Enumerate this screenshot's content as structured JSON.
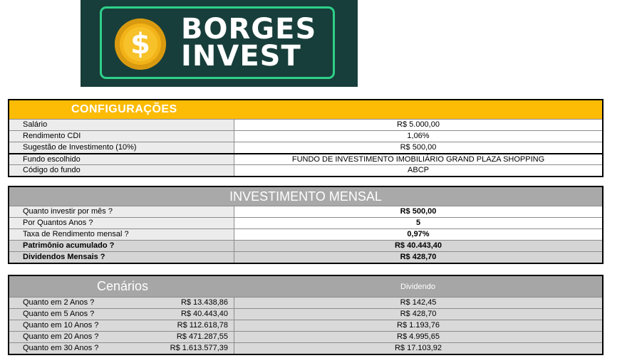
{
  "logo": {
    "coin_symbol": "$",
    "line1": "BORGES",
    "line2": "INVEST",
    "bg_color": "#173e3a",
    "frame_color": "#2fd08a",
    "coin_color": "#f2b318"
  },
  "config": {
    "title": "CONFIGURAÇÕES",
    "header_color": "#fcbb05",
    "rows": [
      {
        "label": "Salário",
        "value": "R$ 5.000,00"
      },
      {
        "label": "Rendimento CDI",
        "value": "1,06%"
      },
      {
        "label": "Sugestão de Investimento (10%)",
        "value": "R$ 500,00"
      },
      {
        "label": "Fundo escolhido",
        "value": "FUNDO DE INVESTIMENTO IMOBILIÁRIO GRAND PLAZA SHOPPING"
      },
      {
        "label": "Código do fundo",
        "value": "ABCP"
      }
    ]
  },
  "investimento": {
    "title": "INVESTIMENTO MENSAL",
    "rows": [
      {
        "label": "Quanto investir por mês ?",
        "value": "R$ 500,00"
      },
      {
        "label": "Por Quantos Anos ?",
        "value": "5"
      },
      {
        "label": "Taxa de Rendimento mensal ?",
        "value": "0,97%"
      },
      {
        "label": "Patrimônio acumulado ?",
        "value": "R$ 40.443,40"
      },
      {
        "label": "Dividendos Mensais ?",
        "value": "R$ 428,70"
      }
    ]
  },
  "cenarios": {
    "title": "Cenários",
    "dividend_header": "Dividendo",
    "rows": [
      {
        "label": "Quanto em 2 Anos ?",
        "total": "R$ 13.438,86",
        "dividend": "R$ 142,45"
      },
      {
        "label": "Quanto em 5 Anos ?",
        "total": "R$ 40.443,40",
        "dividend": "R$ 428,70"
      },
      {
        "label": "Quanto em 10 Anos ?",
        "total": "R$ 112.618,78",
        "dividend": "R$ 1.193,76"
      },
      {
        "label": "Quanto em 20 Anos ?",
        "total": "R$ 471.287,55",
        "dividend": "R$ 4.995,65"
      },
      {
        "label": "Quanto em 30 Anos ?",
        "total": "R$ 1.613.577,39",
        "dividend": "R$ 17.103,92"
      }
    ]
  }
}
